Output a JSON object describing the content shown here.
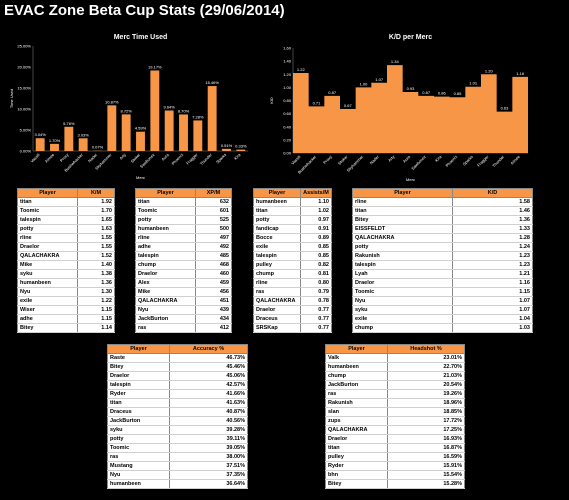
{
  "page": {
    "title": "EVAC Zone Beta Cup Stats (29/06/2014)"
  },
  "chart_data": [
    {
      "type": "bar",
      "title": "Merc Time Used",
      "xlabel": "Merc",
      "ylabel": "Time Used",
      "ylim": [
        0,
        25
      ],
      "yticks": [
        "0.00%",
        "5.00%",
        "10.00%",
        "15.00%",
        "20.00%",
        "25.00%"
      ],
      "categories": [
        "Vassili",
        "Aimee",
        "Proxy",
        "Bushwhacker",
        "Nader",
        "Skyhammer",
        "Arty",
        "Stoker",
        "Sawbonez",
        "Aura",
        "Phoenix",
        "Fragger",
        "Thunder",
        "Sparks",
        "Kira"
      ],
      "values": [
        3.04,
        1.7,
        5.76,
        3.03,
        0.07,
        10.87,
        8.72,
        4.59,
        19.17,
        9.64,
        8.7,
        7.28,
        15.46,
        0.51,
        0.33
      ],
      "labels": [
        "3.04%",
        "1.70%",
        "5.76%",
        "3.03%",
        "0.07%",
        "10.87%",
        "8.72%",
        "4.59%",
        "19.17%",
        "9.64%",
        "8.70%",
        "7.28%",
        "15.46%",
        "0.51%",
        "0.33%"
      ],
      "color": "#f79646",
      "grid": false
    },
    {
      "type": "area",
      "title": "K/D per Merc",
      "xlabel": "Merc",
      "ylabel": "K/D",
      "ylim": [
        0,
        1.6
      ],
      "yticks": [
        "0.00",
        "0.20",
        "0.40",
        "0.60",
        "0.80",
        "1.00",
        "1.20",
        "1.40",
        "1.60"
      ],
      "categories": [
        "Vassili",
        "Bushwhacker",
        "Proxy",
        "Stoker",
        "Skyhammer",
        "Nader",
        "Arty",
        "Aura",
        "Sawbonez",
        "Kira",
        "Phoenix",
        "Sparks",
        "Fragger",
        "Thunder",
        "Aimee"
      ],
      "values": [
        1.22,
        0.71,
        0.87,
        0.67,
        1.0,
        1.07,
        1.34,
        0.93,
        0.87,
        0.86,
        0.85,
        1.01,
        1.2,
        0.63,
        1.16
      ],
      "labels": [
        "1.22",
        "0.71",
        "0.87",
        "0.67",
        "1.00",
        "1.07",
        "1.34",
        "0.93",
        "0.87",
        "0.86",
        "0.85",
        "1.01",
        "1.20",
        "0.63",
        "1.16"
      ],
      "color": "#f79646",
      "grid": false
    }
  ],
  "tables": {
    "km": {
      "headers": [
        "Player",
        "K/M"
      ],
      "rows": [
        [
          "titan",
          "1.92"
        ],
        [
          "Toomic",
          "1.70"
        ],
        [
          "talespin",
          "1.65"
        ],
        [
          "potty",
          "1.63"
        ],
        [
          "rline",
          "1.55"
        ],
        [
          "Draelor",
          "1.55"
        ],
        [
          "QALACHAKRA",
          "1.52"
        ],
        [
          "Mike",
          "1.40"
        ],
        [
          "syku",
          "1.38"
        ],
        [
          "humanbeen",
          "1.36"
        ],
        [
          "Nyu",
          "1.30"
        ],
        [
          "exile",
          "1.22"
        ],
        [
          "Wiser",
          "1.15"
        ],
        [
          "adhe",
          "1.15"
        ],
        [
          "Bitey",
          "1.14"
        ]
      ]
    },
    "xpm": {
      "headers": [
        "Player",
        "XP/M"
      ],
      "rows": [
        [
          "titan",
          "632"
        ],
        [
          "Toomic",
          "601"
        ],
        [
          "potty",
          "525"
        ],
        [
          "humanbeen",
          "500"
        ],
        [
          "rline",
          "497"
        ],
        [
          "adhe",
          "492"
        ],
        [
          "talespin",
          "485"
        ],
        [
          "chump",
          "468"
        ],
        [
          "Draelor",
          "460"
        ],
        [
          "Alex",
          "459"
        ],
        [
          "Mike",
          "456"
        ],
        [
          "QALACHAKRA",
          "451"
        ],
        [
          "Nyu",
          "439"
        ],
        [
          "JackBurton",
          "434"
        ],
        [
          "ras",
          "412"
        ]
      ]
    },
    "am": {
      "headers": [
        "Player",
        "Assists/M"
      ],
      "rows": [
        [
          "humanbeen",
          "1.10"
        ],
        [
          "titan",
          "1.02"
        ],
        [
          "potty",
          "0.97"
        ],
        [
          "fandicap",
          "0.91"
        ],
        [
          "Bocce",
          "0.89"
        ],
        [
          "exile",
          "0.85"
        ],
        [
          "talespin",
          "0.85"
        ],
        [
          "pulley",
          "0.82"
        ],
        [
          "chump",
          "0.81"
        ],
        [
          "rline",
          "0.80"
        ],
        [
          "ras",
          "0.79"
        ],
        [
          "QALACHAKRA",
          "0.78"
        ],
        [
          "Draelor",
          "0.77"
        ],
        [
          "Draceus",
          "0.77"
        ],
        [
          "SRSKap",
          "0.77"
        ]
      ]
    },
    "kd": {
      "headers": [
        "Player",
        "K/D"
      ],
      "rows": [
        [
          "rline",
          "1.58"
        ],
        [
          "titan",
          "1.46"
        ],
        [
          "Bitey",
          "1.36"
        ],
        [
          "EISSFELDT",
          "1.33"
        ],
        [
          "QALACHAKRA",
          "1.28"
        ],
        [
          "potty",
          "1.24"
        ],
        [
          "Rakunish",
          "1.23"
        ],
        [
          "talespin",
          "1.23"
        ],
        [
          "Lyah",
          "1.21"
        ],
        [
          "Draelor",
          "1.16"
        ],
        [
          "Toomic",
          "1.15"
        ],
        [
          "Nyu",
          "1.07"
        ],
        [
          "syku",
          "1.07"
        ],
        [
          "exile",
          "1.04"
        ],
        [
          "chump",
          "1.03"
        ]
      ]
    },
    "accuracy": {
      "headers": [
        "Player",
        "Accuracy %"
      ],
      "rows": [
        [
          "Raste",
          "46.73%"
        ],
        [
          "Bitey",
          "45.46%"
        ],
        [
          "Draelor",
          "45.06%"
        ],
        [
          "talespin",
          "42.57%"
        ],
        [
          "Ryder",
          "41.66%"
        ],
        [
          "titan",
          "41.63%"
        ],
        [
          "Draceus",
          "40.87%"
        ],
        [
          "JackBurton",
          "40.56%"
        ],
        [
          "syku",
          "39.28%"
        ],
        [
          "potty",
          "39.11%"
        ],
        [
          "Toomic",
          "39.05%"
        ],
        [
          "ras",
          "38.00%"
        ],
        [
          "Mustang",
          "37.51%"
        ],
        [
          "Nyu",
          "37.35%"
        ],
        [
          "humanbeen",
          "36.64%"
        ]
      ]
    },
    "headshot": {
      "headers": [
        "Player",
        "Headshot %"
      ],
      "rows": [
        [
          "Valk",
          "23.01%"
        ],
        [
          "humanbeen",
          "22.70%"
        ],
        [
          "chump",
          "21.03%"
        ],
        [
          "JackBurton",
          "20.54%"
        ],
        [
          "ras",
          "19.26%"
        ],
        [
          "Rakunish",
          "18.96%"
        ],
        [
          "slan",
          "18.85%"
        ],
        [
          "zups",
          "17.72%"
        ],
        [
          "QALACHAKRA",
          "17.25%"
        ],
        [
          "Draelor",
          "16.93%"
        ],
        [
          "titan",
          "16.87%"
        ],
        [
          "pulley",
          "16.59%"
        ],
        [
          "Ryder",
          "15.91%"
        ],
        [
          "bhn",
          "15.54%"
        ],
        [
          "Bitey",
          "15.28%"
        ]
      ]
    }
  }
}
